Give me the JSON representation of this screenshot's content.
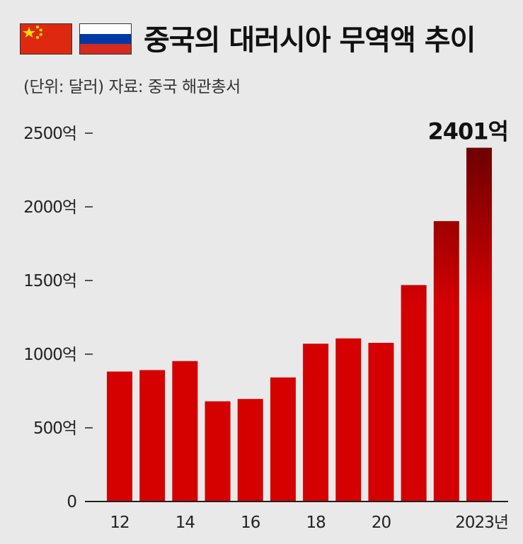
{
  "header": {
    "title": "중국의 대러시아 무역액 추이",
    "subtitle": "(단위: 달러) 자료: 중국 해관총서",
    "flags": [
      {
        "icon": "china-flag-icon",
        "colors": [
          "#de2910",
          "#ffde00"
        ]
      },
      {
        "icon": "russia-flag-icon",
        "colors": [
          "#ffffff",
          "#0039a6",
          "#d52b1e"
        ]
      }
    ]
  },
  "chart_data": {
    "type": "bar",
    "title": "중국의 대러시아 무역액 추이",
    "categories": [
      "2012",
      "2013",
      "2014",
      "2015",
      "2016",
      "2017",
      "2018",
      "2019",
      "2020",
      "2021",
      "2022",
      "2023"
    ],
    "x_tick_labels": [
      "12",
      "",
      "14",
      "",
      "16",
      "",
      "18",
      "",
      "20",
      "",
      "",
      "2023년"
    ],
    "values": [
      882,
      892,
      953,
      680,
      696,
      842,
      1071,
      1107,
      1077,
      1469,
      1903,
      2401
    ],
    "unit": "억 달러",
    "ylim": [
      0,
      2500
    ],
    "y_ticks": [
      0,
      500,
      1000,
      1500,
      2000,
      2500
    ],
    "y_tick_labels": [
      "0",
      "500억",
      "1000억",
      "1500억",
      "2000억",
      "2500억"
    ],
    "data_labels": [
      {
        "index": 11,
        "text": "2401억"
      }
    ],
    "grid": false,
    "legend": "none",
    "bar_color_light": "#d50000",
    "bar_color_dark": "#6e0000",
    "axis_color": "#222222"
  }
}
